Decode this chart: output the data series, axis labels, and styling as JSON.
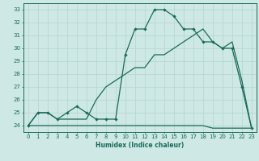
{
  "xlabel": "Humidex (Indice chaleur)",
  "bg_color": "#cde8e5",
  "grid_color": "#b8d8d5",
  "line_color": "#1a6b5a",
  "xlim": [
    -0.5,
    23.5
  ],
  "ylim": [
    23.5,
    33.5
  ],
  "yticks": [
    24,
    25,
    26,
    27,
    28,
    29,
    30,
    31,
    32,
    33
  ],
  "xticks": [
    0,
    1,
    2,
    3,
    4,
    5,
    6,
    7,
    8,
    9,
    10,
    11,
    12,
    13,
    14,
    15,
    16,
    17,
    18,
    19,
    20,
    21,
    22,
    23
  ],
  "series1_x": [
    0,
    1,
    2,
    3,
    4,
    5,
    6,
    7,
    8,
    9,
    10,
    11,
    12,
    13,
    14,
    15,
    16,
    17,
    18,
    19,
    20,
    21,
    22,
    23
  ],
  "series1_y": [
    24.0,
    25.0,
    25.0,
    24.5,
    25.0,
    25.5,
    25.0,
    24.5,
    24.5,
    24.5,
    29.5,
    31.5,
    31.5,
    33.0,
    33.0,
    32.5,
    31.5,
    31.5,
    30.5,
    30.5,
    30.0,
    30.0,
    27.0,
    23.8
  ],
  "series2_x": [
    0,
    1,
    2,
    3,
    4,
    5,
    6,
    7,
    8,
    9,
    10,
    11,
    12,
    13,
    14,
    15,
    16,
    17,
    18,
    19,
    20,
    21,
    22,
    23
  ],
  "series2_y": [
    24.0,
    25.0,
    25.0,
    24.5,
    24.5,
    24.5,
    24.5,
    26.0,
    27.0,
    27.5,
    28.0,
    28.5,
    28.5,
    29.5,
    29.5,
    30.0,
    30.5,
    31.0,
    31.5,
    30.5,
    30.0,
    30.5,
    27.5,
    23.8
  ],
  "series3_x": [
    0,
    1,
    2,
    3,
    4,
    5,
    6,
    7,
    8,
    9,
    10,
    11,
    12,
    13,
    14,
    15,
    16,
    17,
    18,
    19,
    20,
    21,
    22,
    23
  ],
  "series3_y": [
    24.0,
    24.0,
    24.0,
    24.0,
    24.0,
    24.0,
    24.0,
    24.0,
    24.0,
    24.0,
    24.0,
    24.0,
    24.0,
    24.0,
    24.0,
    24.0,
    24.0,
    24.0,
    24.0,
    23.8,
    23.8,
    23.8,
    23.8,
    23.8
  ]
}
